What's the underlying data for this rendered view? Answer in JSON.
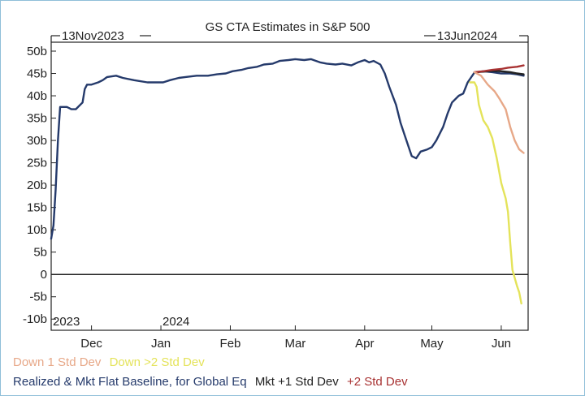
{
  "chart_data": {
    "type": "line",
    "title": "GS CTA Estimates in S&P 500",
    "range_start_label": "13Nov2023",
    "range_end_label": "13Jun2024",
    "year_labels": [
      "2023",
      "2024"
    ],
    "x_ticks": [
      {
        "label": "Dec",
        "date": "2023-12-01"
      },
      {
        "label": "Jan",
        "date": "2024-01-01"
      },
      {
        "label": "Feb",
        "date": "2024-02-01"
      },
      {
        "label": "Mar",
        "date": "2024-03-01"
      },
      {
        "label": "Apr",
        "date": "2024-04-01"
      },
      {
        "label": "May",
        "date": "2024-05-01"
      },
      {
        "label": "Jun",
        "date": "2024-06-01"
      }
    ],
    "xlim": [
      "2023-11-13",
      "2024-06-13"
    ],
    "ylim": [
      -12.5,
      52
    ],
    "y_ticks": [
      {
        "value": 50,
        "label": "50b"
      },
      {
        "value": 45,
        "label": "45b"
      },
      {
        "value": 40,
        "label": "40b"
      },
      {
        "value": 35,
        "label": "35b"
      },
      {
        "value": 30,
        "label": "30b"
      },
      {
        "value": 25,
        "label": "25b"
      },
      {
        "value": 20,
        "label": "20b"
      },
      {
        "value": 15,
        "label": "15b"
      },
      {
        "value": 10,
        "label": "10b"
      },
      {
        "value": 5,
        "label": "5b"
      },
      {
        "value": 0,
        "label": "0"
      },
      {
        "value": -5,
        "label": "-5b"
      },
      {
        "value": -10,
        "label": "-10b"
      }
    ],
    "grid": false,
    "series": [
      {
        "name": "Realized & Mkt Flat Baseline, for Global Eq",
        "color": "#253a6b",
        "points": [
          [
            "2023-11-13",
            8
          ],
          [
            "2023-11-14",
            11
          ],
          [
            "2023-11-15",
            19
          ],
          [
            "2023-11-16",
            30
          ],
          [
            "2023-11-17",
            37.5
          ],
          [
            "2023-11-20",
            37.5
          ],
          [
            "2023-11-22",
            37
          ],
          [
            "2023-11-24",
            37
          ],
          [
            "2023-11-27",
            38.5
          ],
          [
            "2023-11-28",
            41.5
          ],
          [
            "2023-11-29",
            42.5
          ],
          [
            "2023-12-01",
            42.5
          ],
          [
            "2023-12-04",
            43
          ],
          [
            "2023-12-06",
            43.5
          ],
          [
            "2023-12-08",
            44.2
          ],
          [
            "2023-12-12",
            44.5
          ],
          [
            "2023-12-15",
            44
          ],
          [
            "2023-12-20",
            43.5
          ],
          [
            "2023-12-26",
            43
          ],
          [
            "2024-01-02",
            43
          ],
          [
            "2024-01-05",
            43.5
          ],
          [
            "2024-01-09",
            44
          ],
          [
            "2024-01-12",
            44.2
          ],
          [
            "2024-01-17",
            44.5
          ],
          [
            "2024-01-22",
            44.5
          ],
          [
            "2024-01-26",
            44.8
          ],
          [
            "2024-01-30",
            45
          ],
          [
            "2024-02-02",
            45.5
          ],
          [
            "2024-02-06",
            45.8
          ],
          [
            "2024-02-09",
            46.2
          ],
          [
            "2024-02-13",
            46.5
          ],
          [
            "2024-02-16",
            47
          ],
          [
            "2024-02-20",
            47.2
          ],
          [
            "2024-02-23",
            47.8
          ],
          [
            "2024-02-27",
            48
          ],
          [
            "2024-03-01",
            48.2
          ],
          [
            "2024-03-05",
            48
          ],
          [
            "2024-03-08",
            48.2
          ],
          [
            "2024-03-12",
            47.5
          ],
          [
            "2024-03-15",
            47.2
          ],
          [
            "2024-03-19",
            47
          ],
          [
            "2024-03-22",
            47.2
          ],
          [
            "2024-03-26",
            46.8
          ],
          [
            "2024-03-29",
            47.5
          ],
          [
            "2024-04-01",
            48
          ],
          [
            "2024-04-03",
            47.5
          ],
          [
            "2024-04-05",
            47.8
          ],
          [
            "2024-04-08",
            47
          ],
          [
            "2024-04-10",
            45
          ],
          [
            "2024-04-12",
            42
          ],
          [
            "2024-04-15",
            38
          ],
          [
            "2024-04-17",
            34
          ],
          [
            "2024-04-19",
            31
          ],
          [
            "2024-04-22",
            26.5
          ],
          [
            "2024-04-24",
            26
          ],
          [
            "2024-04-26",
            27.5
          ],
          [
            "2024-04-29",
            28
          ],
          [
            "2024-05-01",
            28.5
          ],
          [
            "2024-05-03",
            30
          ],
          [
            "2024-05-06",
            33
          ],
          [
            "2024-05-08",
            36
          ],
          [
            "2024-05-10",
            38.5
          ],
          [
            "2024-05-13",
            40
          ],
          [
            "2024-05-15",
            40.5
          ],
          [
            "2024-05-17",
            43
          ],
          [
            "2024-05-20",
            45.2
          ],
          [
            "2024-05-24",
            45.5
          ],
          [
            "2024-05-28",
            45.3
          ],
          [
            "2024-06-01",
            45
          ],
          [
            "2024-06-05",
            45
          ],
          [
            "2024-06-08",
            44.8
          ],
          [
            "2024-06-11",
            44.5
          ]
        ]
      },
      {
        "name": "Mkt +1 Std Dev",
        "color": "#222222",
        "points": [
          [
            "2024-05-20",
            45.3
          ],
          [
            "2024-05-24",
            45.4
          ],
          [
            "2024-05-28",
            45.6
          ],
          [
            "2024-06-01",
            45.5
          ],
          [
            "2024-06-05",
            45.3
          ],
          [
            "2024-06-08",
            45
          ],
          [
            "2024-06-11",
            44.8
          ]
        ]
      },
      {
        "name": "+2 Std Dev",
        "color": "#a83232",
        "points": [
          [
            "2024-05-20",
            45.3
          ],
          [
            "2024-05-24",
            45.5
          ],
          [
            "2024-05-28",
            45.8
          ],
          [
            "2024-06-01",
            46
          ],
          [
            "2024-06-04",
            46.3
          ],
          [
            "2024-06-08",
            46.5
          ],
          [
            "2024-06-11",
            46.8
          ]
        ]
      },
      {
        "name": "Down 1 Std Dev",
        "color": "#e7a888",
        "points": [
          [
            "2024-05-20",
            45.3
          ],
          [
            "2024-05-23",
            44.5
          ],
          [
            "2024-05-26",
            42.5
          ],
          [
            "2024-05-29",
            41
          ],
          [
            "2024-05-31",
            39.5
          ],
          [
            "2024-06-03",
            37
          ],
          [
            "2024-06-05",
            33
          ],
          [
            "2024-06-07",
            30
          ],
          [
            "2024-06-09",
            28
          ],
          [
            "2024-06-11",
            27.2
          ]
        ]
      },
      {
        "name": "Down >2 Std Dev",
        "color": "#e4e35a",
        "points": [
          [
            "2024-05-18",
            43
          ],
          [
            "2024-05-20",
            43
          ],
          [
            "2024-05-21",
            42
          ],
          [
            "2024-05-22",
            38
          ],
          [
            "2024-05-24",
            34.5
          ],
          [
            "2024-05-26",
            33
          ],
          [
            "2024-05-28",
            30.5
          ],
          [
            "2024-05-30",
            26
          ],
          [
            "2024-06-01",
            20.5
          ],
          [
            "2024-06-03",
            17
          ],
          [
            "2024-06-04",
            14
          ],
          [
            "2024-06-05",
            7
          ],
          [
            "2024-06-06",
            1
          ],
          [
            "2024-06-08",
            -2.5
          ],
          [
            "2024-06-09",
            -4
          ],
          [
            "2024-06-10",
            -6.5
          ]
        ]
      }
    ]
  }
}
